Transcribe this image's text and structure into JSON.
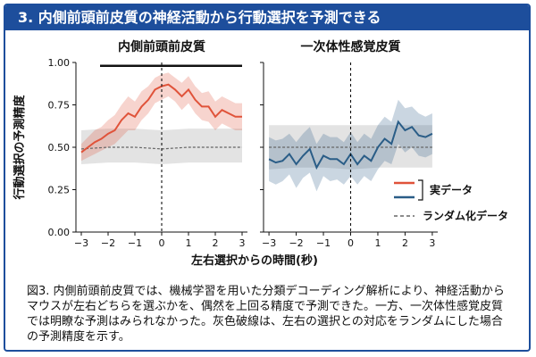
{
  "header": {
    "title": "3. 内側前頭前皮質の神経活動から行動選択を予測できる"
  },
  "caption": {
    "text": "図3. 内側前頭前皮質では、機械学習を用いた分類デコーディング解析により、神経活動からマウスが左右どちらを選ぶかを、偶然を上回る精度で予測できた。一方、一次体性感覚皮質では明瞭な予測はみられなかった。灰色破線は、左右の選択との対応をランダムにした場合の予測精度を示す。"
  },
  "chart_data": [
    {
      "type": "line",
      "title": "内側前頭前皮質",
      "xlabel": "左右選択からの時間(秒)",
      "ylabel": "行動選択の予測精度",
      "xlim": [
        -3.2,
        3.2
      ],
      "ylim": [
        0.0,
        1.0
      ],
      "xticks": [
        -3,
        -2,
        -1,
        0,
        1,
        2,
        3
      ],
      "xtick_labels": [
        "−3",
        "−2",
        "−1",
        "0",
        "1",
        "2",
        "3"
      ],
      "yticks": [
        0.0,
        0.25,
        0.5,
        0.75,
        1.0
      ],
      "ytick_labels": [
        "0.00",
        "0.25",
        "0.50",
        "0.75",
        "1.00"
      ],
      "significance_bar": [
        -2.3,
        3.0
      ],
      "significance_y": 0.98,
      "series": [
        {
          "name": "実データ",
          "color": "#e0533a",
          "x": [
            -3.0,
            -2.75,
            -2.5,
            -2.25,
            -2.0,
            -1.75,
            -1.5,
            -1.25,
            -1.0,
            -0.75,
            -0.5,
            -0.25,
            0.0,
            0.25,
            0.5,
            0.75,
            1.0,
            1.25,
            1.5,
            1.75,
            2.0,
            2.25,
            2.5,
            2.75,
            3.0
          ],
          "y": [
            0.47,
            0.5,
            0.53,
            0.55,
            0.58,
            0.6,
            0.66,
            0.7,
            0.68,
            0.74,
            0.78,
            0.84,
            0.86,
            0.87,
            0.84,
            0.8,
            0.84,
            0.78,
            0.74,
            0.74,
            0.68,
            0.72,
            0.7,
            0.68,
            0.68
          ],
          "lower": [
            0.42,
            0.44,
            0.46,
            0.48,
            0.5,
            0.52,
            0.56,
            0.6,
            0.6,
            0.66,
            0.7,
            0.76,
            0.78,
            0.8,
            0.77,
            0.72,
            0.76,
            0.7,
            0.66,
            0.65,
            0.6,
            0.64,
            0.62,
            0.6,
            0.6
          ],
          "upper": [
            0.52,
            0.56,
            0.6,
            0.62,
            0.66,
            0.69,
            0.75,
            0.8,
            0.77,
            0.83,
            0.86,
            0.91,
            0.93,
            0.94,
            0.91,
            0.88,
            0.92,
            0.86,
            0.82,
            0.83,
            0.77,
            0.8,
            0.78,
            0.76,
            0.76
          ]
        },
        {
          "name": "ランダム化データ",
          "color": "#666666",
          "dashed": true,
          "x": [
            -3.0,
            -2.0,
            -1.0,
            0.0,
            1.0,
            2.0,
            3.0
          ],
          "y": [
            0.49,
            0.5,
            0.5,
            0.49,
            0.5,
            0.5,
            0.5
          ],
          "lower": [
            0.4,
            0.41,
            0.41,
            0.4,
            0.41,
            0.41,
            0.41
          ],
          "upper": [
            0.6,
            0.61,
            0.61,
            0.6,
            0.61,
            0.61,
            0.61
          ]
        }
      ]
    },
    {
      "type": "line",
      "title": "一次体性感覚皮質",
      "xlim": [
        -3.2,
        3.2
      ],
      "ylim": [
        0.0,
        1.0
      ],
      "xticks": [
        -3,
        -2,
        -1,
        0,
        1,
        2,
        3
      ],
      "xtick_labels": [
        "−3",
        "−2",
        "−1",
        "0",
        "1",
        "2",
        "3"
      ],
      "series": [
        {
          "name": "実データ",
          "color": "#2a5d87",
          "x": [
            -3.0,
            -2.75,
            -2.5,
            -2.25,
            -2.0,
            -1.75,
            -1.5,
            -1.25,
            -1.0,
            -0.75,
            -0.5,
            -0.25,
            0.0,
            0.25,
            0.5,
            0.75,
            1.0,
            1.25,
            1.5,
            1.75,
            2.0,
            2.25,
            2.5,
            2.75,
            3.0
          ],
          "y": [
            0.43,
            0.41,
            0.42,
            0.46,
            0.4,
            0.45,
            0.49,
            0.38,
            0.45,
            0.43,
            0.43,
            0.4,
            0.46,
            0.4,
            0.45,
            0.42,
            0.5,
            0.55,
            0.52,
            0.65,
            0.6,
            0.62,
            0.57,
            0.56,
            0.58
          ],
          "lower": [
            0.3,
            0.28,
            0.3,
            0.34,
            0.26,
            0.32,
            0.35,
            0.24,
            0.33,
            0.3,
            0.31,
            0.28,
            0.33,
            0.28,
            0.33,
            0.3,
            0.37,
            0.42,
            0.4,
            0.52,
            0.47,
            0.5,
            0.45,
            0.44,
            0.46
          ],
          "upper": [
            0.56,
            0.54,
            0.55,
            0.58,
            0.53,
            0.58,
            0.62,
            0.52,
            0.58,
            0.56,
            0.56,
            0.53,
            0.59,
            0.53,
            0.58,
            0.55,
            0.63,
            0.68,
            0.65,
            0.78,
            0.73,
            0.74,
            0.7,
            0.68,
            0.7
          ]
        },
        {
          "name": "ランダム化データ",
          "color": "#666666",
          "dashed": true,
          "x": [
            -3.0,
            -2.0,
            -1.0,
            0.0,
            1.0,
            2.0,
            3.0
          ],
          "y": [
            0.5,
            0.5,
            0.5,
            0.5,
            0.5,
            0.5,
            0.5
          ],
          "lower": [
            0.37,
            0.38,
            0.38,
            0.37,
            0.38,
            0.38,
            0.38
          ],
          "upper": [
            0.63,
            0.63,
            0.63,
            0.63,
            0.63,
            0.63,
            0.63
          ]
        }
      ]
    }
  ],
  "legend": {
    "bracket_label": "実データ",
    "dash_label": "ランダム化データ",
    "bracket_colors": [
      "#e0533a",
      "#2a5d87"
    ]
  }
}
